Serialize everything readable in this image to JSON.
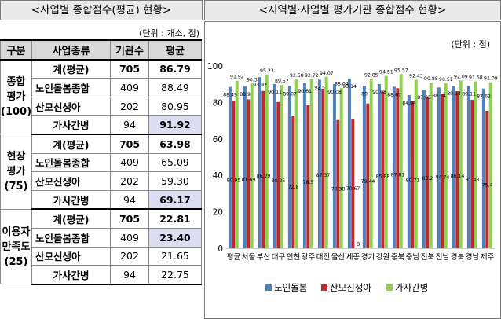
{
  "left": {
    "title": "<사업별 종합점수(평균) 현황>",
    "unit": "(단위 : 개소, 점)",
    "headers": [
      "구분",
      "사업종류",
      "기관수",
      "평균"
    ],
    "groups": [
      {
        "label": [
          "종합",
          "평가",
          "(100)"
        ],
        "rows": [
          {
            "type": "계(평균)",
            "count": "705",
            "avg": "86.79"
          },
          {
            "type": "노인돌봄종합",
            "count": "409",
            "avg": "88.49"
          },
          {
            "type": "산모신생아",
            "count": "202",
            "avg": "80.95"
          },
          {
            "type": "가사간병",
            "count": "94",
            "avg": "91.92"
          }
        ]
      },
      {
        "label": [
          "현장",
          "평가",
          "(75)"
        ],
        "rows": [
          {
            "type": "계(평균)",
            "count": "705",
            "avg": "63.98"
          },
          {
            "type": "노인돌봄종합",
            "count": "409",
            "avg": "65.09"
          },
          {
            "type": "산모신생아",
            "count": "202",
            "avg": "59.30"
          },
          {
            "type": "가사간병",
            "count": "94",
            "avg": "69.17"
          }
        ]
      },
      {
        "label": [
          "이용자",
          "만족도",
          "(25)"
        ],
        "rows": [
          {
            "type": "계(평균)",
            "count": "705",
            "avg": "22.81"
          },
          {
            "type": "노인돌봄종합",
            "count": "409",
            "avg": "23.40"
          },
          {
            "type": "산모신생아",
            "count": "202",
            "avg": "21.65"
          },
          {
            "type": "가사간병",
            "count": "94",
            "avg": "22.75"
          }
        ]
      }
    ],
    "highlight_color": "#dcdcf2"
  },
  "right": {
    "title": "<지역별·사업별 평가기관 종합점수 현황>",
    "unit": "(단위 : 점)"
  },
  "chart_data": {
    "type": "bar",
    "categories": [
      "평균",
      "서울",
      "부산",
      "대구",
      "인천",
      "광주",
      "대전",
      "울산",
      "세종",
      "경기",
      "강원",
      "충북",
      "충남",
      "전북",
      "전남",
      "경북",
      "경남",
      "제주"
    ],
    "series": [
      {
        "name": "노인돌봄",
        "color": "#4f81bd",
        "values": [
          88.49,
          88.9,
          93.92,
          90.11,
          89.07,
          90.61,
          92.5,
          90.08,
          93.14,
          89.0,
          90.08,
          88.67,
          84.04,
          87.05,
          88.24,
          89.14,
          89.11,
          87.62
        ]
      },
      {
        "name": "산모신생아",
        "color": "#c0282d",
        "values": [
          80.95,
          81.69,
          86.29,
          80.25,
          72.8,
          78.5,
          87.37,
          70.38,
          70.67,
          79.44,
          85.88,
          87.81,
          80.71,
          83.2,
          84.74,
          86.14,
          81.48,
          75.4
        ]
      },
      {
        "name": "가사간병",
        "color": "#92d050",
        "values": [
          91.92,
          90.3,
          95.23,
          89.57,
          92.58,
          92.72,
          94.07,
          88.04,
          null,
          92.85,
          94.51,
          95.57,
          92.43,
          90.88,
          90.51,
          92.09,
          91.58,
          91.09
        ]
      }
    ],
    "zero_label": {
      "category": "세종",
      "series": "가사간병",
      "text": "0"
    },
    "ylim": [
      0,
      100
    ],
    "yticks": [
      "0",
      "20",
      "40",
      "60",
      "80",
      "100"
    ],
    "legend_position": "bottom"
  }
}
